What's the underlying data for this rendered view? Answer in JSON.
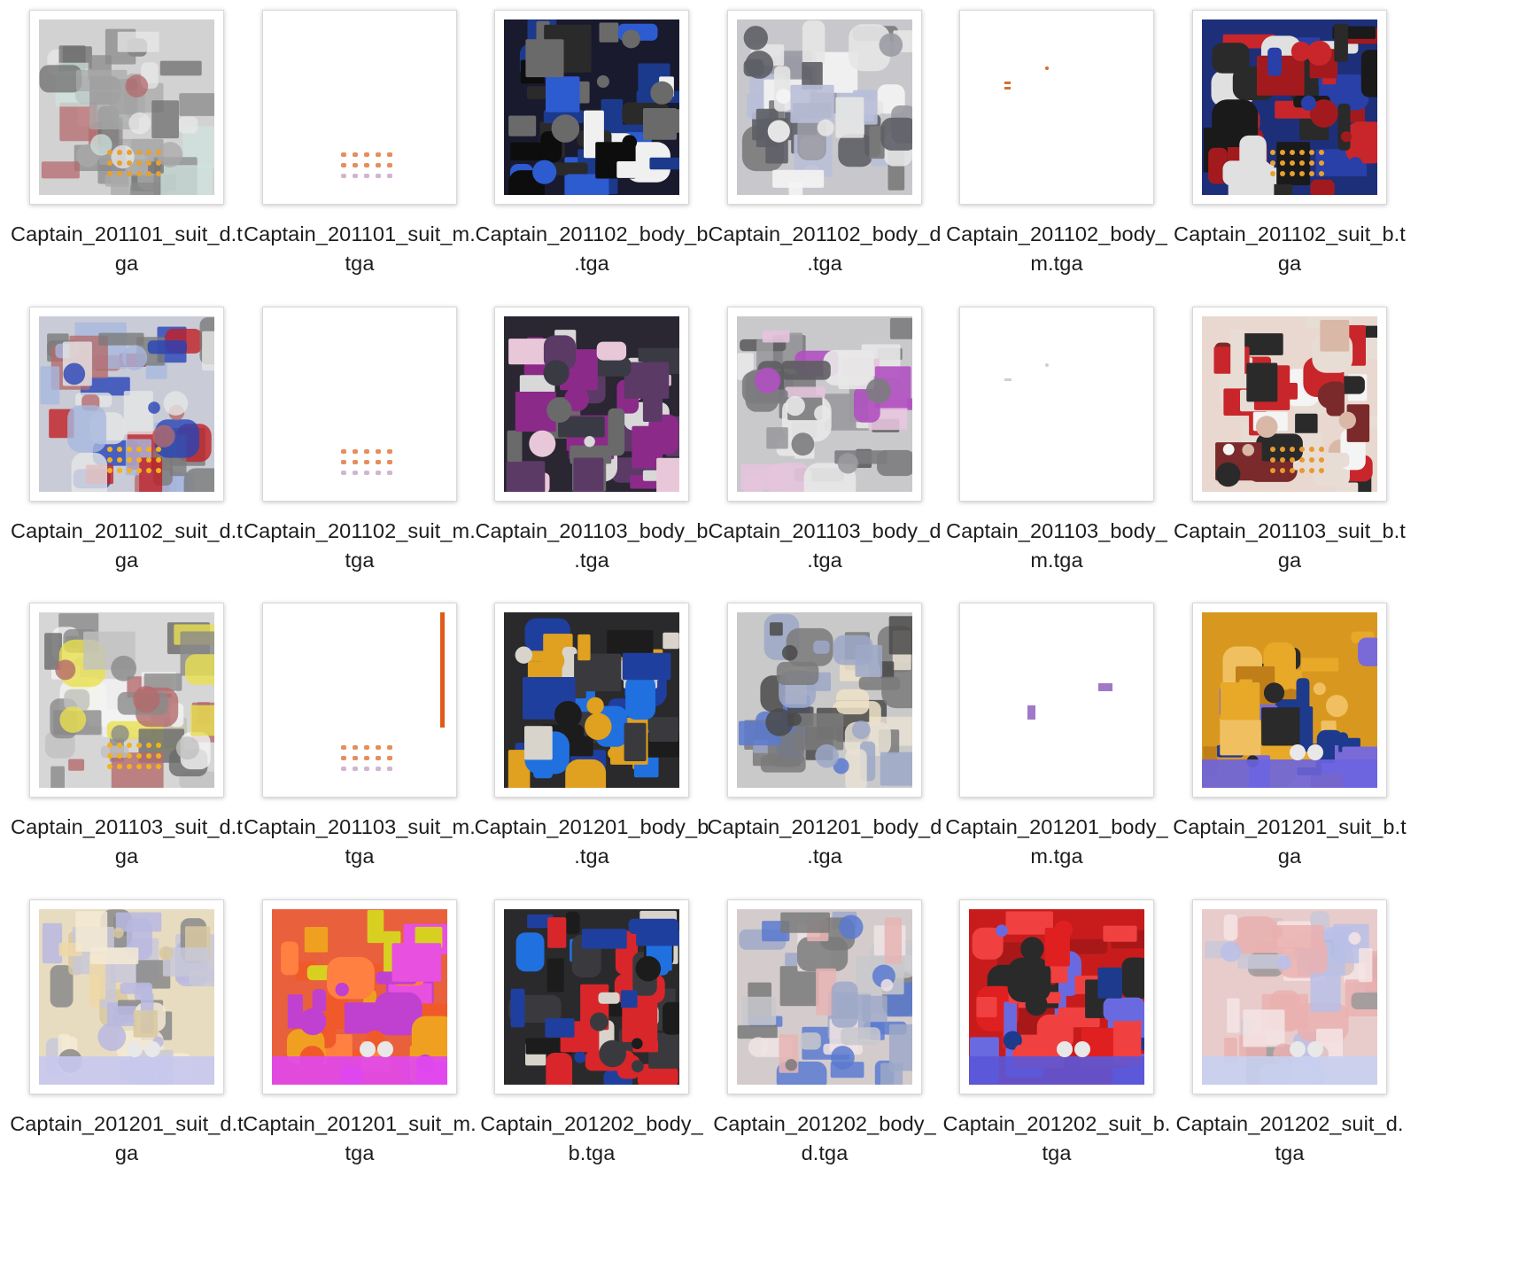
{
  "files": [
    {
      "label": [
        "Captain_201101_suit_d.t",
        "ga"
      ],
      "icon": "texture-suit-light-icon",
      "theme": {
        "bg": "#d2d2d2",
        "colors": [
          "#b46a6c",
          "#8a8a8a",
          "#e8e8e8",
          "#cfe3df",
          "#6e6e6e",
          "#a9a9a9"
        ],
        "alpha": 0.75,
        "dots": "#e8a030"
      }
    },
    {
      "label": [
        "Captain_201101_suit_m.",
        "tga"
      ],
      "icon": "texture-mask-dots-icon",
      "theme": {
        "bg": "#ffffff",
        "marks": "dots",
        "dots": "#e07a40"
      }
    },
    {
      "label": [
        "Captain_201102_body_b",
        ".tga"
      ],
      "icon": "texture-body-dark-icon",
      "theme": {
        "bg": "#1a1a2e",
        "colors": [
          "#1c3a8c",
          "#f0f0f0",
          "#2a2a2a",
          "#6a6a6a",
          "#2d5bd0",
          "#0d0d0d"
        ],
        "alpha": 1
      }
    },
    {
      "label": [
        "Captain_201102_body_d",
        ".tga"
      ],
      "icon": "texture-body-light-icon",
      "theme": {
        "bg": "#c8c8cc",
        "colors": [
          "#e6e6e6",
          "#9a9aa4",
          "#7a7a7a",
          "#b9bfd8",
          "#f4f4f4",
          "#5e5e66"
        ],
        "alpha": 0.9
      }
    },
    {
      "label": [
        "Captain_201102_body_",
        "m.tga"
      ],
      "icon": "texture-mask-sparse-icon",
      "theme": {
        "bg": "#ffffff",
        "marks": "sparse",
        "dots": "#d07030"
      }
    },
    {
      "label": [
        "Captain_201102_suit_b.t",
        "ga"
      ],
      "icon": "texture-suit-blue-icon",
      "theme": {
        "bg": "#1e2f7a",
        "colors": [
          "#c8262a",
          "#2840a8",
          "#2a2a2a",
          "#e0e0e0",
          "#1a1a1a",
          "#a31a1e"
        ],
        "alpha": 1,
        "dots": "#e8a030"
      }
    },
    {
      "label": [
        "Captain_201102_suit_d.t",
        "ga"
      ],
      "icon": "texture-suit-light-icon",
      "theme": {
        "bg": "#c9cbd6",
        "colors": [
          "#b46a6c",
          "#a7b8de",
          "#e6e6e6",
          "#7a7a7a",
          "#2844b8",
          "#c01f24"
        ],
        "alpha": 0.8,
        "dots": "#f2b21e"
      }
    },
    {
      "label": [
        "Captain_201102_suit_m.",
        "tga"
      ],
      "icon": "texture-mask-dots-icon",
      "theme": {
        "bg": "#ffffff",
        "marks": "dots",
        "dots": "#e07a40"
      }
    },
    {
      "label": [
        "Captain_201103_body_b",
        ".tga"
      ],
      "icon": "texture-body-purple-icon",
      "theme": {
        "bg": "#2a2632",
        "colors": [
          "#5b3a66",
          "#8c2a8a",
          "#d8d8d8",
          "#3a3a44",
          "#6a6a6a",
          "#e8c8d8"
        ],
        "alpha": 1
      }
    },
    {
      "label": [
        "Captain_201103_body_d",
        ".tga"
      ],
      "icon": "texture-body-light-icon",
      "theme": {
        "bg": "#c9c9cc",
        "colors": [
          "#e8e8e8",
          "#9a9a9e",
          "#7c7c80",
          "#e4c4dc",
          "#b050c0",
          "#5e5e62"
        ],
        "alpha": 0.9
      }
    },
    {
      "label": [
        "Captain_201103_body_",
        "m.tga"
      ],
      "icon": "texture-mask-sparse-icon",
      "theme": {
        "bg": "#ffffff",
        "marks": "faint",
        "dots": "#c8d0e0"
      }
    },
    {
      "label": [
        "Captain_201103_suit_b.t",
        "ga"
      ],
      "icon": "texture-suit-red-icon",
      "theme": {
        "bg": "#e8d8d0",
        "colors": [
          "#c8262a",
          "#e7ddd5",
          "#d9b8a8",
          "#2a2a2a",
          "#f4f4f4",
          "#7a2a2a"
        ],
        "alpha": 1,
        "dots": "#e89a30"
      }
    },
    {
      "label": [
        "Captain_201103_suit_d.t",
        "ga"
      ],
      "icon": "texture-suit-light-icon",
      "theme": {
        "bg": "#d6d6d6",
        "colors": [
          "#b46a6c",
          "#f4f4f4",
          "#8a8a8a",
          "#6a6a6a",
          "#e8e050",
          "#c0c0c0"
        ],
        "alpha": 0.8,
        "dots": "#f2b21e"
      }
    },
    {
      "label": [
        "Captain_201103_suit_m.",
        "tga"
      ],
      "icon": "texture-mask-stripe-icon",
      "theme": {
        "bg": "#ffffff",
        "marks": "stripe",
        "dots": "#e07a40"
      }
    },
    {
      "label": [
        "Captain_201201_body_b",
        ".tga"
      ],
      "icon": "texture-body-gold-icon",
      "theme": {
        "bg": "#2a2a2c",
        "colors": [
          "#e0a020",
          "#1f3f9e",
          "#1c1c1c",
          "#d8d4cc",
          "#3a3a3e",
          "#2070e0"
        ],
        "alpha": 1
      }
    },
    {
      "label": [
        "Captain_201201_body_d",
        ".tga"
      ],
      "icon": "texture-body-light-icon",
      "theme": {
        "bg": "#c9c9c9",
        "colors": [
          "#efe2c8",
          "#9da8c8",
          "#7a7a7a",
          "#4a4a4a",
          "#e8e0d4",
          "#5a7ad0"
        ],
        "alpha": 0.85
      }
    },
    {
      "label": [
        "Captain_201201_body_",
        "m.tga"
      ],
      "icon": "texture-mask-sparse-icon",
      "theme": {
        "bg": "#ffffff",
        "marks": "purple",
        "dots": "#a078c8"
      }
    },
    {
      "label": [
        "Captain_201201_suit_b.t",
        "ga"
      ],
      "icon": "texture-suit-gold-icon",
      "theme": {
        "bg": "#d89820",
        "colors": [
          "#e8a828",
          "#c07e18",
          "#2a2a2a",
          "#7a6ad8",
          "#f0c060",
          "#1e3a8c"
        ],
        "alpha": 1,
        "band": "#6c64e0"
      }
    },
    {
      "label": [
        "Captain_201201_suit_d.t",
        "ga"
      ],
      "icon": "texture-suit-light-icon",
      "theme": {
        "bg": "#e8dcc0",
        "colors": [
          "#efd8a8",
          "#d8c8a0",
          "#c8c8d8",
          "#8a8a8a",
          "#f4ead4",
          "#b8b8e0"
        ],
        "alpha": 0.85,
        "band": "#c8c8f0"
      }
    },
    {
      "label": [
        "Captain_201201_suit_m.",
        "tga"
      ],
      "icon": "texture-mask-color-icon",
      "theme": {
        "bg": "#e8603c",
        "colors": [
          "#f05a2a",
          "#e850e0",
          "#d8d020",
          "#ff8040",
          "#c040d0",
          "#f0a020"
        ],
        "alpha": 1,
        "band": "#e048f0"
      }
    },
    {
      "label": [
        "Captain_201202_body_",
        "b.tga"
      ],
      "icon": "texture-body-red-icon",
      "theme": {
        "bg": "#2a2a2c",
        "colors": [
          "#d8262a",
          "#1f3f9e",
          "#1c1c1c",
          "#d8d4cc",
          "#3a3a3e",
          "#2070e0"
        ],
        "alpha": 1
      }
    },
    {
      "label": [
        "Captain_201202_body_",
        "d.tga"
      ],
      "icon": "texture-body-light-icon",
      "theme": {
        "bg": "#d4cccc",
        "colors": [
          "#e8b4b4",
          "#9da8c8",
          "#7a7a7a",
          "#f0e4e4",
          "#c8c8cc",
          "#5a7ad0"
        ],
        "alpha": 0.85
      }
    },
    {
      "label": [
        "Captain_201202_suit_b.",
        "tga"
      ],
      "icon": "texture-suit-red-icon",
      "theme": {
        "bg": "#c81c1c",
        "colors": [
          "#e02020",
          "#a81818",
          "#2a2a2a",
          "#6a6ae0",
          "#f04040",
          "#1e3a8c"
        ],
        "alpha": 1,
        "band": "#5a58d8"
      }
    },
    {
      "label": [
        "Captain_201202_suit_d.",
        "tga"
      ],
      "icon": "texture-suit-light-icon",
      "theme": {
        "bg": "#e8cccc",
        "colors": [
          "#eab0b0",
          "#d8c0c0",
          "#c8c8d8",
          "#9a9a9a",
          "#f4e4e4",
          "#b8c0e8"
        ],
        "alpha": 0.85,
        "band": "#c8d0f0"
      }
    }
  ]
}
